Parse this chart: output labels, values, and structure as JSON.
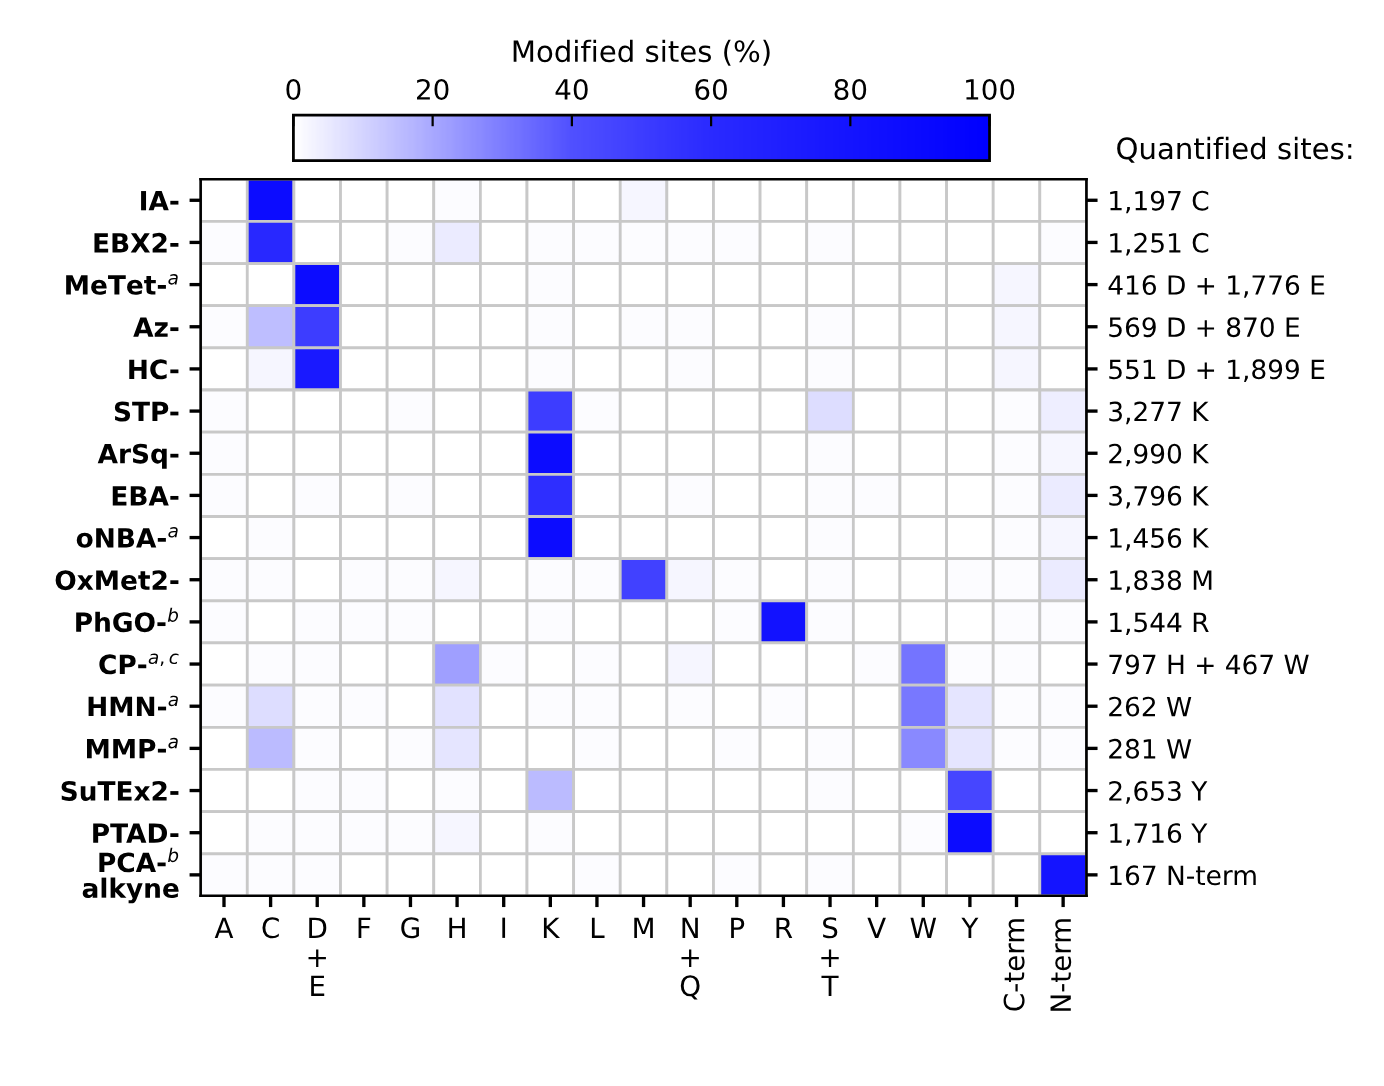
{
  "chart_data": {
    "type": "heatmap",
    "clabel": "Modified sites (%)",
    "clim": [
      0,
      100
    ],
    "cticks": [
      0,
      20,
      40,
      60,
      80,
      100
    ],
    "categories": [
      "A",
      "C",
      "D\n+\nE",
      "F",
      "G",
      "H",
      "I",
      "K",
      "L",
      "M",
      "N\n+\nQ",
      "P",
      "R",
      "S\n+\nT",
      "V",
      "W",
      "Y",
      "C-term",
      "N-term"
    ],
    "y_categories": [
      "IA-",
      "EBX2-",
      "MeTet-$^{a}$",
      "Az-",
      "HC-",
      "STP-",
      "ArSq-",
      "EBA-",
      "oNBA-$^{a}$",
      "OxMet2-",
      "PhGO-$^{b}$",
      "CP-$^{a,c}$",
      "HMN-$^{a}$",
      "MMP-$^{a}$",
      "SuTEx2-",
      "PTAD-",
      "PCA-$^{b}$\nalkyne"
    ],
    "y2_categories": [
      "1,197 C",
      "1,251 C",
      "416 D + 1,776 E",
      "569 D + 870 E",
      "551 D + 1,899 E",
      "3,277 K",
      "2,990 K",
      "3,796 K",
      "1,456 K",
      "1,838 M",
      "1,544 R",
      "797 H + 467 W",
      "262 W",
      "281 W",
      "2,653 Y",
      "1,716 Y",
      "167 N-term"
    ],
    "cells": [
      [
        0,
        88,
        0,
        0,
        0,
        1,
        0,
        0,
        0,
        2,
        0,
        0,
        0,
        0,
        0,
        0,
        0,
        0,
        0
      ],
      [
        1,
        62,
        0,
        0,
        1,
        5,
        0,
        1,
        1,
        1,
        1,
        1,
        0,
        1,
        0,
        0,
        0,
        0,
        1
      ],
      [
        0,
        0,
        88,
        0,
        0,
        0,
        0,
        1,
        0,
        0,
        0,
        0,
        0,
        0,
        0,
        0,
        0,
        2,
        0
      ],
      [
        1,
        15,
        50,
        0,
        0,
        0,
        0,
        1,
        0,
        1,
        1,
        0,
        0,
        1,
        0,
        0,
        0,
        2,
        0
      ],
      [
        0,
        2,
        75,
        0,
        0,
        0,
        0,
        1,
        0,
        0,
        1,
        0,
        0,
        1,
        0,
        0,
        0,
        2,
        0
      ],
      [
        1,
        0,
        0,
        0,
        1,
        0,
        0,
        50,
        1,
        0,
        0,
        0,
        0,
        8,
        0,
        0,
        0,
        1,
        4
      ],
      [
        1,
        0,
        0,
        0,
        0,
        0,
        0,
        88,
        0,
        0,
        0,
        0,
        0,
        1,
        0,
        0,
        0,
        1,
        2
      ],
      [
        1,
        0,
        1,
        0,
        1,
        0,
        0,
        58,
        0,
        0,
        1,
        0,
        0,
        1,
        1,
        0,
        0,
        1,
        5
      ],
      [
        0,
        1,
        0,
        0,
        0,
        0,
        0,
        88,
        0,
        0,
        0,
        0,
        0,
        1,
        0,
        0,
        0,
        1,
        2
      ],
      [
        1,
        1,
        0,
        1,
        1,
        2,
        0,
        1,
        1,
        48,
        2,
        1,
        0,
        1,
        0,
        0,
        1,
        1,
        5
      ],
      [
        1,
        0,
        1,
        1,
        1,
        0,
        0,
        1,
        0,
        0,
        0,
        1,
        82,
        1,
        0,
        0,
        0,
        1,
        1
      ],
      [
        0,
        1,
        1,
        0,
        0,
        22,
        1,
        0,
        1,
        0,
        2,
        0,
        0,
        0,
        1,
        32,
        1,
        1,
        0
      ],
      [
        1,
        8,
        1,
        1,
        0,
        7,
        0,
        1,
        1,
        0,
        1,
        0,
        1,
        0,
        0,
        31,
        6,
        1,
        1
      ],
      [
        0,
        16,
        1,
        0,
        1,
        6,
        0,
        0,
        1,
        0,
        0,
        1,
        0,
        1,
        0,
        27,
        6,
        1,
        1
      ],
      [
        0,
        0,
        1,
        1,
        0,
        1,
        0,
        16,
        0,
        0,
        0,
        0,
        0,
        1,
        0,
        0,
        45,
        0,
        0
      ],
      [
        0,
        1,
        1,
        1,
        1,
        2,
        0,
        1,
        0,
        0,
        0,
        0,
        0,
        0,
        0,
        1,
        88,
        0,
        0
      ],
      [
        1,
        1,
        1,
        0,
        0,
        0,
        0,
        0,
        1,
        0,
        0,
        1,
        0,
        1,
        0,
        0,
        0,
        0,
        80
      ]
    ],
    "annotations": [
      "Quantified sites:"
    ]
  }
}
